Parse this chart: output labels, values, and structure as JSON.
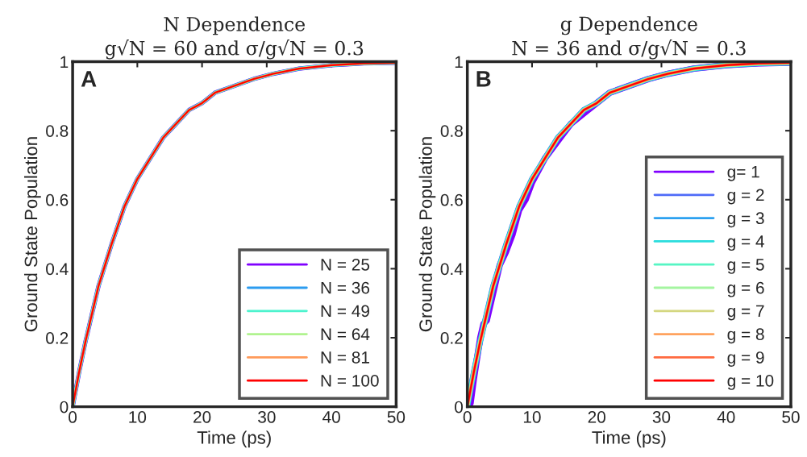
{
  "chart_data": [
    {
      "type": "line",
      "title": "N Dependence\ng√N = 60 and σ/g√N = 0.3",
      "xlabel": "Time (ps)",
      "ylabel": "Ground State Population",
      "annotations": [
        "A"
      ],
      "x": [
        0,
        1,
        2,
        3,
        4,
        5,
        6,
        8,
        10,
        12,
        14,
        16,
        18,
        20,
        22,
        25,
        28,
        31,
        35,
        40,
        45,
        50
      ],
      "xlim": [
        0,
        50
      ],
      "xticks": [
        0,
        10,
        20,
        30,
        40,
        50
      ],
      "ylim": [
        0,
        1
      ],
      "yticks": [
        0,
        0.2,
        0.4,
        0.6,
        0.8,
        1
      ],
      "grid": false,
      "legend": "bottom right",
      "series": [
        {
          "name": "N = 25",
          "color": "#8000ff",
          "values": [
            0,
            0.1,
            0.19,
            0.27,
            0.35,
            0.41,
            0.47,
            0.58,
            0.66,
            0.72,
            0.78,
            0.82,
            0.86,
            0.88,
            0.91,
            0.93,
            0.95,
            0.965,
            0.98,
            0.99,
            0.995,
            0.997
          ]
        },
        {
          "name": "N = 36",
          "color": "#2c9cf0",
          "values": [
            0,
            0.1,
            0.19,
            0.27,
            0.35,
            0.41,
            0.47,
            0.58,
            0.66,
            0.72,
            0.78,
            0.82,
            0.86,
            0.88,
            0.91,
            0.93,
            0.95,
            0.965,
            0.98,
            0.99,
            0.995,
            0.997
          ]
        },
        {
          "name": "N = 49",
          "color": "#4df3ce",
          "values": [
            0,
            0.1,
            0.19,
            0.27,
            0.35,
            0.41,
            0.47,
            0.58,
            0.66,
            0.72,
            0.78,
            0.82,
            0.86,
            0.88,
            0.91,
            0.93,
            0.95,
            0.965,
            0.98,
            0.99,
            0.995,
            0.997
          ]
        },
        {
          "name": "N = 64",
          "color": "#b0f38f",
          "values": [
            0,
            0.1,
            0.19,
            0.27,
            0.35,
            0.41,
            0.47,
            0.58,
            0.66,
            0.72,
            0.78,
            0.82,
            0.86,
            0.88,
            0.91,
            0.93,
            0.95,
            0.965,
            0.98,
            0.99,
            0.995,
            0.997
          ]
        },
        {
          "name": "N = 81",
          "color": "#ff9a5a",
          "values": [
            0,
            0.1,
            0.19,
            0.27,
            0.35,
            0.41,
            0.47,
            0.58,
            0.66,
            0.72,
            0.78,
            0.82,
            0.86,
            0.88,
            0.91,
            0.93,
            0.95,
            0.965,
            0.98,
            0.99,
            0.995,
            0.997
          ]
        },
        {
          "name": "N = 100",
          "color": "#ff0000",
          "values": [
            0,
            0.1,
            0.19,
            0.27,
            0.35,
            0.41,
            0.47,
            0.58,
            0.66,
            0.72,
            0.78,
            0.82,
            0.86,
            0.88,
            0.91,
            0.93,
            0.95,
            0.965,
            0.98,
            0.99,
            0.995,
            0.997
          ]
        }
      ]
    },
    {
      "type": "line",
      "title": "g Dependence\nN = 36 and σ/g√N = 0.3",
      "xlabel": "Time (ps)",
      "ylabel": "Ground State Population",
      "annotations": [
        "B"
      ],
      "x": [
        0,
        1,
        2,
        3,
        4,
        5,
        6,
        8,
        10,
        12,
        14,
        16,
        18,
        20,
        22,
        25,
        28,
        31,
        35,
        40,
        45,
        50
      ],
      "xlim": [
        0,
        50
      ],
      "xticks": [
        0,
        10,
        20,
        30,
        40,
        50
      ],
      "ylim": [
        0,
        1
      ],
      "yticks": [
        0,
        0.2,
        0.4,
        0.6,
        0.8,
        1
      ],
      "grid": false,
      "legend": "bottom right",
      "series": [
        {
          "name": "g= 1",
          "color": "#8000ff",
          "x": [
            0,
            0.5,
            1,
            2,
            2.5,
            3,
            4,
            5,
            6,
            7,
            8,
            9,
            10,
            12,
            14,
            16,
            18,
            20,
            22,
            25,
            28,
            31,
            35,
            40,
            45,
            50
          ],
          "values": [
            0,
            0.01,
            0.08,
            0.2,
            0.24,
            0.25,
            0.33,
            0.41,
            0.45,
            0.5,
            0.57,
            0.6,
            0.65,
            0.72,
            0.77,
            0.82,
            0.85,
            0.88,
            0.91,
            0.93,
            0.95,
            0.965,
            0.98,
            0.99,
            0.995,
            0.997
          ]
        },
        {
          "name": "g = 2",
          "color": "#4f6cf8",
          "values": [
            0,
            0.1,
            0.19,
            0.27,
            0.35,
            0.41,
            0.47,
            0.58,
            0.66,
            0.72,
            0.78,
            0.82,
            0.86,
            0.88,
            0.91,
            0.93,
            0.95,
            0.965,
            0.98,
            0.99,
            0.995,
            0.997
          ]
        },
        {
          "name": "g = 3",
          "color": "#2ca1f0",
          "values": [
            0,
            0.1,
            0.19,
            0.27,
            0.35,
            0.41,
            0.47,
            0.58,
            0.66,
            0.72,
            0.78,
            0.82,
            0.86,
            0.88,
            0.91,
            0.93,
            0.95,
            0.965,
            0.98,
            0.99,
            0.995,
            0.997
          ]
        },
        {
          "name": "g = 4",
          "color": "#2adddd",
          "values": [
            0,
            0.1,
            0.19,
            0.27,
            0.35,
            0.41,
            0.47,
            0.58,
            0.66,
            0.72,
            0.78,
            0.82,
            0.86,
            0.88,
            0.91,
            0.93,
            0.95,
            0.965,
            0.98,
            0.99,
            0.995,
            0.997
          ]
        },
        {
          "name": "g = 5",
          "color": "#56f5c4",
          "values": [
            0,
            0.1,
            0.19,
            0.27,
            0.35,
            0.41,
            0.47,
            0.58,
            0.66,
            0.72,
            0.78,
            0.82,
            0.86,
            0.88,
            0.91,
            0.93,
            0.95,
            0.965,
            0.98,
            0.99,
            0.995,
            0.997
          ]
        },
        {
          "name": "g = 6",
          "color": "#a4f5a0",
          "values": [
            0,
            0.1,
            0.19,
            0.27,
            0.35,
            0.41,
            0.47,
            0.58,
            0.66,
            0.72,
            0.78,
            0.82,
            0.86,
            0.88,
            0.91,
            0.93,
            0.95,
            0.965,
            0.98,
            0.99,
            0.995,
            0.997
          ]
        },
        {
          "name": "g = 7",
          "color": "#d4d780",
          "values": [
            0,
            0.1,
            0.19,
            0.27,
            0.35,
            0.41,
            0.47,
            0.58,
            0.66,
            0.72,
            0.78,
            0.82,
            0.86,
            0.88,
            0.91,
            0.93,
            0.95,
            0.965,
            0.98,
            0.99,
            0.995,
            0.997
          ]
        },
        {
          "name": "g = 8",
          "color": "#ffa25e",
          "values": [
            0,
            0.1,
            0.19,
            0.27,
            0.35,
            0.41,
            0.47,
            0.58,
            0.66,
            0.72,
            0.78,
            0.82,
            0.86,
            0.88,
            0.91,
            0.93,
            0.95,
            0.965,
            0.98,
            0.99,
            0.995,
            0.997
          ]
        },
        {
          "name": "g = 9",
          "color": "#ff6a40",
          "values": [
            0,
            0.1,
            0.19,
            0.27,
            0.35,
            0.41,
            0.47,
            0.58,
            0.66,
            0.72,
            0.78,
            0.82,
            0.86,
            0.88,
            0.91,
            0.93,
            0.95,
            0.965,
            0.98,
            0.99,
            0.995,
            0.997
          ]
        },
        {
          "name": "g = 10",
          "color": "#ff0000",
          "values": [
            0,
            0.1,
            0.19,
            0.27,
            0.35,
            0.41,
            0.47,
            0.58,
            0.66,
            0.72,
            0.78,
            0.82,
            0.86,
            0.88,
            0.91,
            0.93,
            0.95,
            0.965,
            0.98,
            0.99,
            0.995,
            0.997
          ]
        }
      ]
    }
  ]
}
